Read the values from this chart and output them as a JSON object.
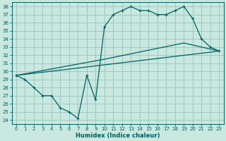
{
  "xlabel": "Humidex (Indice chaleur)",
  "bg_color": "#c8e8e0",
  "grid_color": "#a0c8c0",
  "line_color": "#006060",
  "xlim": [
    -0.5,
    23.5
  ],
  "ylim": [
    23.5,
    38.5
  ],
  "yticks": [
    24,
    25,
    26,
    27,
    28,
    29,
    30,
    31,
    32,
    33,
    34,
    35,
    36,
    37,
    38
  ],
  "xticks": [
    0,
    1,
    2,
    3,
    4,
    5,
    6,
    7,
    8,
    9,
    10,
    11,
    12,
    13,
    14,
    15,
    16,
    17,
    18,
    19,
    20,
    21,
    22,
    23
  ],
  "line1_x": [
    0,
    1,
    2,
    3,
    4,
    5,
    6,
    7,
    8,
    9,
    10,
    11,
    12,
    13,
    14,
    15,
    16,
    17,
    18,
    19,
    20,
    21,
    22,
    23
  ],
  "line1_y": [
    29.5,
    29.0,
    28.0,
    27.0,
    27.0,
    25.5,
    25.0,
    24.2,
    29.5,
    26.5,
    35.5,
    37.0,
    37.5,
    38.0,
    37.5,
    37.5,
    37.0,
    37.0,
    37.5,
    38.0,
    36.5,
    34.0,
    33.0,
    32.5
  ],
  "line2_x": [
    0,
    23
  ],
  "line2_y": [
    29.5,
    32.5
  ],
  "line3_x": [
    0,
    10,
    19,
    23
  ],
  "line3_y": [
    29.5,
    31.5,
    33.5,
    32.5
  ]
}
